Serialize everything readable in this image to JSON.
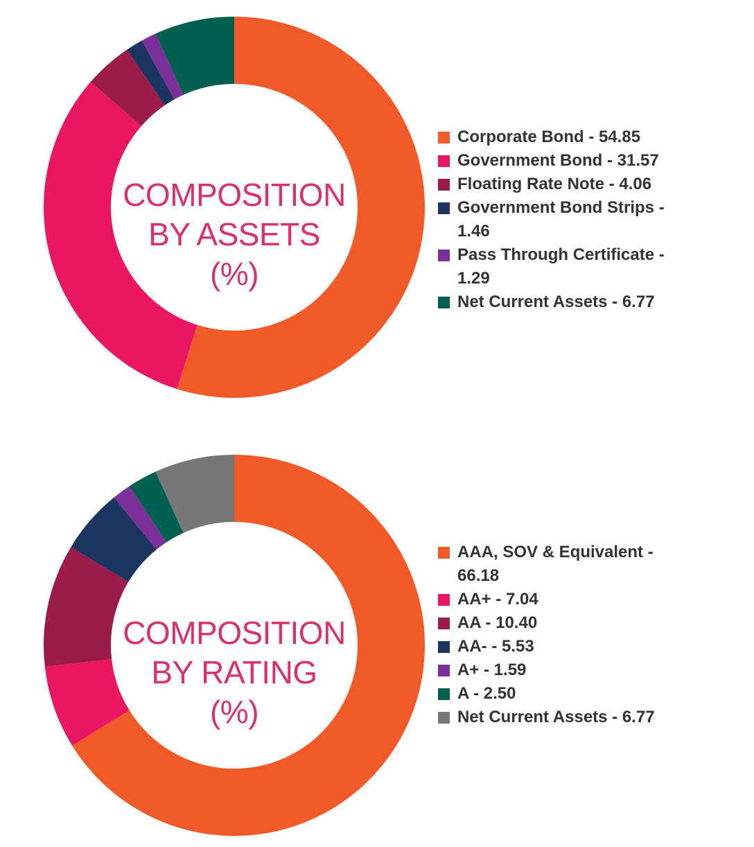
{
  "chart_data": [
    {
      "type": "pie",
      "title": "COMPOSITION BY ASSETS (%)",
      "title_lines": [
        "COMPOSITION",
        "BY ASSETS",
        "(%)"
      ],
      "categories": [
        "Corporate Bond",
        "Government Bond",
        "Floating Rate Note",
        "Government Bond Strips",
        "Pass Through Certificate",
        "Net Current Assets"
      ],
      "values": [
        54.85,
        31.57,
        4.06,
        1.46,
        1.29,
        6.77
      ],
      "colors": [
        "#f05a28",
        "#e91763",
        "#9b1b4b",
        "#1c3560",
        "#7b2f98",
        "#00604f"
      ],
      "legend_labels": [
        "Corporate Bond - 54.85",
        "Government Bond - 31.57",
        "Floating Rate Note - 4.06",
        "Government Bond Strips - 1.46",
        "Pass Through Certificate - 1.29",
        "Net Current Assets - 6.77"
      ],
      "legend_position": "right"
    },
    {
      "type": "pie",
      "title": "COMPOSITION BY RATING (%)",
      "title_lines": [
        "COMPOSITION",
        "BY RATING",
        "(%)"
      ],
      "categories": [
        "AAA, SOV & Equivalent",
        "AA+",
        "AA",
        "AA-",
        "A+",
        "A",
        "Net Current Assets"
      ],
      "values": [
        66.18,
        7.04,
        10.4,
        5.53,
        1.59,
        2.5,
        6.77
      ],
      "colors": [
        "#f05a28",
        "#e91763",
        "#9b1b4b",
        "#1c3560",
        "#7b2f98",
        "#00604f",
        "#77777a"
      ],
      "legend_labels": [
        "AAA, SOV & Equivalent - 66.18",
        "AA+ - 7.04",
        "AA - 10.40",
        "AA- - 5.53",
        "A+ - 1.59",
        "A - 2.50",
        "Net Current Assets - 6.77"
      ],
      "legend_position": "right"
    }
  ]
}
